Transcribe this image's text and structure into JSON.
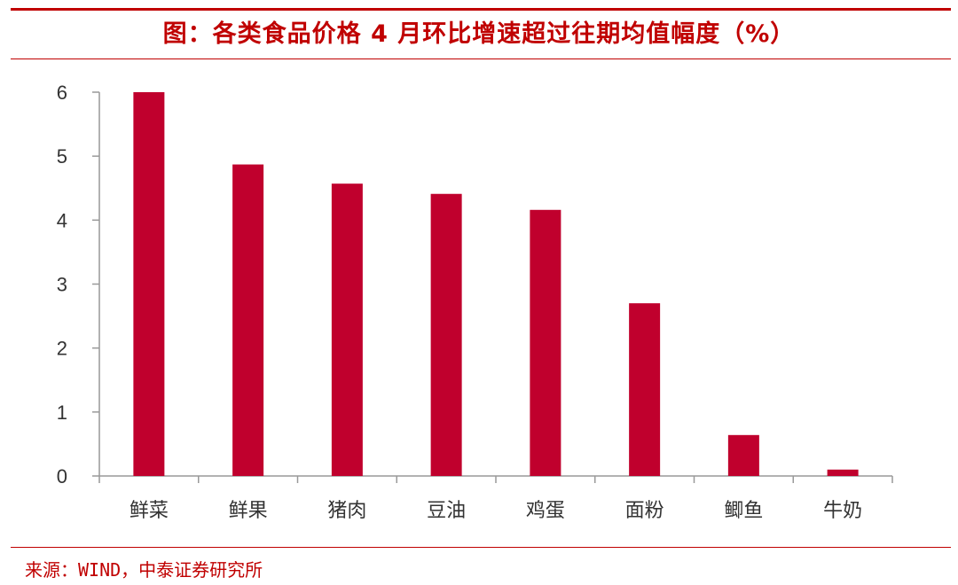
{
  "header": {
    "title": "图：各类食品价格 4 月环比增速超过往期均值幅度（%）"
  },
  "footer": {
    "source": "来源：WIND，中泰证券研究所"
  },
  "colors": {
    "bar": "#c0002d",
    "accent": "#c00000",
    "axis": "#999999"
  },
  "chart_data": {
    "type": "bar",
    "title": "图：各类食品价格 4 月环比增速超过往期均值幅度（%）",
    "categories": [
      "鲜菜",
      "鲜果",
      "猪肉",
      "豆油",
      "鸡蛋",
      "面粉",
      "鲫鱼",
      "牛奶"
    ],
    "values": [
      6.0,
      4.87,
      4.57,
      4.41,
      4.16,
      2.7,
      0.64,
      0.1
    ],
    "ylim": [
      0,
      6
    ],
    "yticks": [
      0,
      1,
      2,
      3,
      4,
      5,
      6
    ],
    "xlabel": "",
    "ylabel": "",
    "grid": false,
    "legend": "none"
  }
}
